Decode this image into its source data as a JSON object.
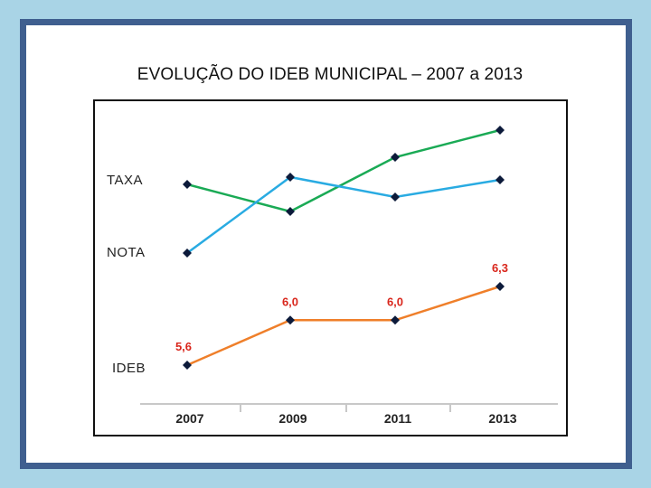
{
  "title": "EVOLUÇÃO DO IDEB MUNICIPAL – 2007 a 2013",
  "chart_data": {
    "type": "line",
    "title": "EVOLUÇÃO DO IDEB MUNICIPAL – 2007 a 2013",
    "categories": [
      "2007",
      "2009",
      "2011",
      "2013"
    ],
    "grid": false,
    "legend": "none",
    "series": [
      {
        "name": "TAXA",
        "color": "#1aaa55",
        "values": [
          null,
          null,
          null,
          null
        ],
        "labels": []
      },
      {
        "name": "NOTA",
        "color": "#29abe2",
        "values": [
          null,
          null,
          null,
          null
        ],
        "labels": []
      },
      {
        "name": "IDEB",
        "color": "#ef7f2a",
        "values": [
          5.6,
          6.0,
          6.0,
          6.3
        ],
        "labels": [
          "5,6",
          "6,0",
          "6,0",
          "6,3"
        ],
        "label_color": "#d9261c"
      }
    ],
    "marker_color": "#0c1a3a"
  }
}
